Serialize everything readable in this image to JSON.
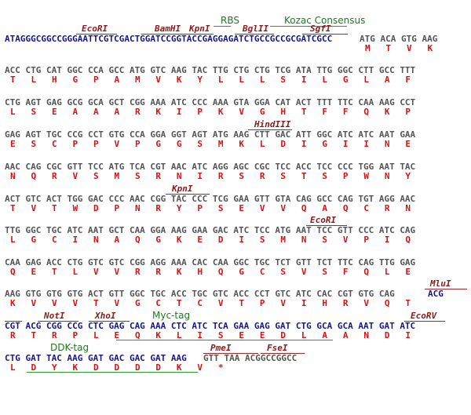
{
  "row1": {
    "dna_highlight": "ATAGGGCGGCCGGGAATTCGTCGACTGGATCCGGTACCGAGGAGATCTGCCGCCGCGATCGCC",
    "dna_rest": "ATG ACA GTG AAG",
    "aa": "M   T   V   K",
    "enzymes": [
      "EcoRI",
      "BamHI",
      "KpnI",
      "BglII",
      "SgfI"
    ],
    "features": [
      "RBS",
      "Kozac Consensus"
    ]
  },
  "row2": {
    "dna": "ACC CTG CAT GGC CCA GCC ATG GTC AAG TAC TTG CTG CTG TCG ATA TTG GGC CTT GCC TTT",
    "aa": "T   L   H   G   P   A   M   V   K   Y   L   L   L   S   I   L   G   L   A   F"
  },
  "row3": {
    "dna": "CTG AGT GAG GCG GCA GCT CGG AAA ATC CCC AAA GTA GGA CAT ACT TTT TTC CAA AAG CCT",
    "aa": "L   S   E   A   A   A   R   K   I   P   K   V   G   H   T   F   F   Q   K   P"
  },
  "row4": {
    "enzyme": "HindIII",
    "dna": "GAG AGT TGC CCG CCT GTG CCA GGA GGT AGT ATG AAG CTT GAC ATT GGC ATC ATC AAT GAA",
    "aa": "E   S   C   P   P   V   P   G   G   S   M   K   L   D   I   G   I   I   N   E"
  },
  "row5": {
    "dna": "AAC CAG CGC GTT TCC ATG TCA CGT AAC ATC AGG AGC CGC TCC ACC TCC CCC TGG AAT TAC",
    "aa": "N   Q   R   V   S   M   S   R   N   I   R   S   R   S   T   S   P   W   N   Y"
  },
  "row6": {
    "enzyme": "KpnI",
    "dna": "ACT GTC ACT TGG GAC CCC AAC CGG TAC CCC TCG GAA GTT GTA CAG GCC CAG TGT AGG AAC",
    "aa": "T   V   T   W   D   P   N   R   Y   P   S   E   V   V   Q   A   Q   C   R   N"
  },
  "row7": {
    "enzyme": "EcoRI",
    "dna": "TTG GGC TGC ATC AAT GCT CAA GGA AAG GAA GAC ATC TCC ATG AAT TCC GTT CCC ATC CAG",
    "aa": "L   G   C   I   N   A   Q   G   K   E   D   I   S   M   N   S   V   P   I   Q"
  },
  "row8": {
    "dna": "CAA GAG ACC CTG GTC GTC CGG AGG AAA CAC CAA GGC TGC TCT GTT TCT TTC CAG TTG GAG",
    "aa": "Q   E   T   L   V   V   R   R   K   H   Q   G   C   S   V   S   F   Q   L   E"
  },
  "row9": {
    "enzyme": "MluI",
    "dna": "AAG GTG GTG GTG ACT GTT GGC TGC ACC TGC GTC ACC CCT GTC ATC CAC CGT GTG CAG",
    "dna_highlight": "ACG",
    "aa": "K   V   V   V   T   V   G   C   T   C   V   T   P   V   I   H   R   V   Q   T"
  },
  "row10": {
    "enzymes": [
      "NotI",
      "XhoI",
      "EcoRV"
    ],
    "feature": "Myc-tag",
    "dna": "CGT ACG CGG CCG CTC GAG CAG AAA CTC ATC TCA GAA GAG GAT CTG GCA GCA AAT GAT ATC",
    "aa": "R   T   R   P   L   E   Q   K   L   I   S   E   E   D   L   A   A   N   D   I"
  },
  "row11": {
    "feature": "DDK-tag",
    "enzymes": [
      "PmeI",
      "FseI"
    ],
    "dna_highlight": "CTG GAT TAC AAG GAT GAC GAC GAT AAG",
    "dna_rest": "GTT TAA ACGGCCGGCC",
    "aa": "L   D   Y   K   D   D   D   D   K   V   *"
  }
}
